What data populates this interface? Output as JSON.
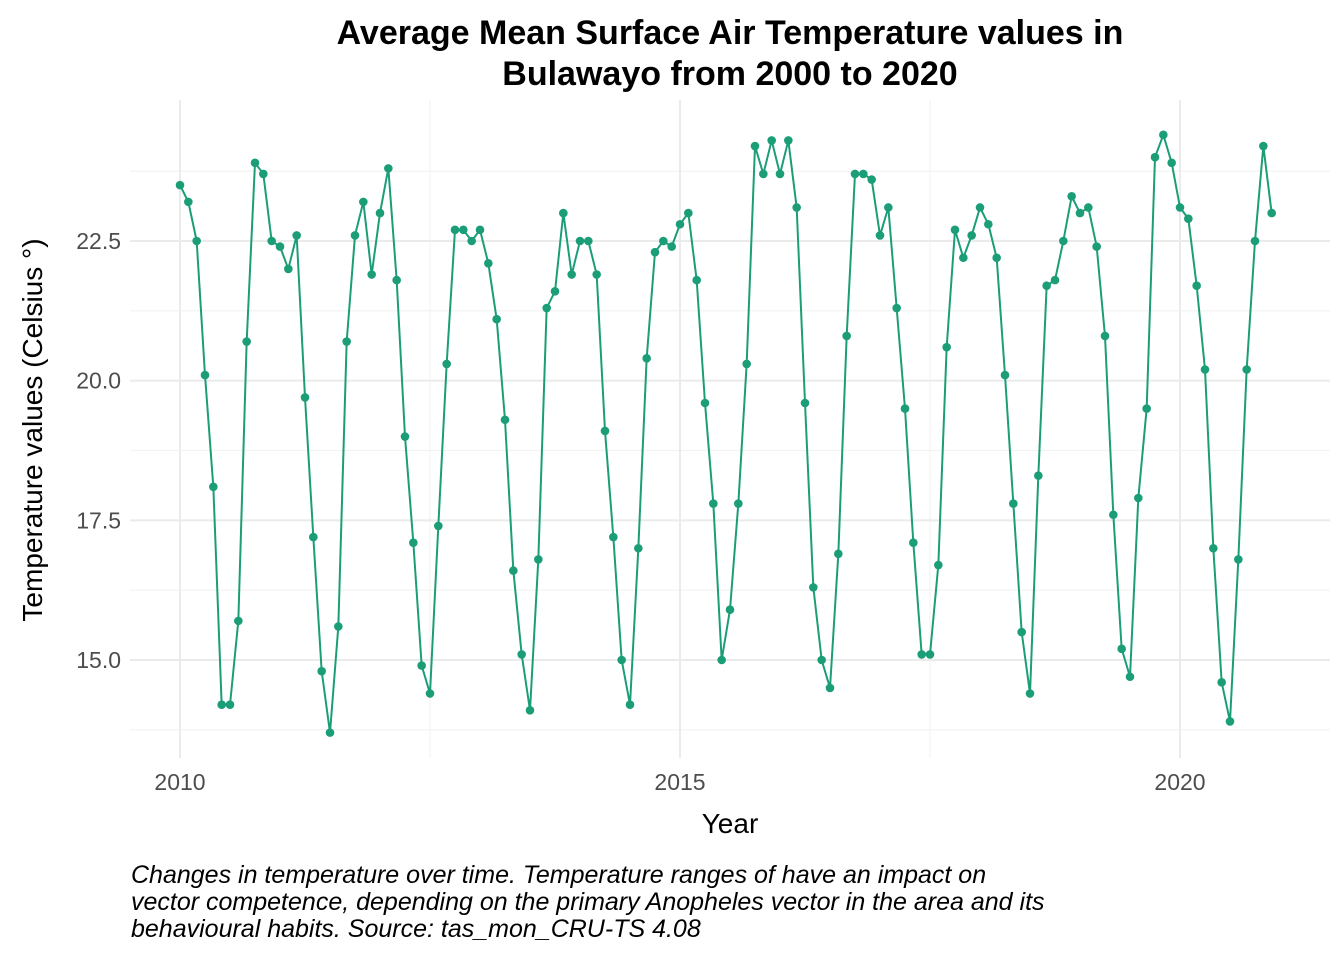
{
  "chart_data": {
    "type": "line",
    "title": [
      "Average Mean Surface Air Temperature values in",
      "Bulawayo from 2000 to 2020"
    ],
    "xlabel": "Year",
    "ylabel": "Temperature values (Celsius °)",
    "x_ticks": [
      "2010",
      "2015",
      "2020"
    ],
    "y_ticks": [
      "15.0",
      "17.5",
      "20.0",
      "22.5"
    ],
    "x_tick_values": [
      2010,
      2015,
      2020
    ],
    "y_tick_values": [
      15.0,
      17.5,
      20.0,
      22.5
    ],
    "xlim": [
      2009.5,
      2021.5
    ],
    "ylim": [
      13.5,
      24.9
    ],
    "grid": true,
    "legend": "none",
    "x_start": 2010.0,
    "x_step_months": 1,
    "series": [
      {
        "color": "#1b9e77",
        "values": [
          23.5,
          23.2,
          22.5,
          20.1,
          18.1,
          14.2,
          14.2,
          15.7,
          20.7,
          23.9,
          23.7,
          22.5,
          22.4,
          22.0,
          22.6,
          19.7,
          17.2,
          14.8,
          13.7,
          15.6,
          20.7,
          22.6,
          23.2,
          21.9,
          23.0,
          23.8,
          21.8,
          19.0,
          17.1,
          14.9,
          14.4,
          17.4,
          20.3,
          22.7,
          22.7,
          22.5,
          22.7,
          22.1,
          21.1,
          19.3,
          16.6,
          15.1,
          14.1,
          16.8,
          21.3,
          21.6,
          23.0,
          21.9,
          22.5,
          22.5,
          21.9,
          19.1,
          17.2,
          15.0,
          14.2,
          17.0,
          20.4,
          22.3,
          22.5,
          22.4,
          22.8,
          23.0,
          21.8,
          19.6,
          17.8,
          15.0,
          15.9,
          17.8,
          20.3,
          24.2,
          23.7,
          24.3,
          23.7,
          24.3,
          23.1,
          19.6,
          16.3,
          15.0,
          14.5,
          16.9,
          20.8,
          23.7,
          23.7,
          23.6,
          22.6,
          23.1,
          21.3,
          19.5,
          17.1,
          15.1,
          15.1,
          16.7,
          20.6,
          22.7,
          22.2,
          22.6,
          23.1,
          22.8,
          22.2,
          20.1,
          17.8,
          15.5,
          14.4,
          18.3,
          21.7,
          21.8,
          22.5,
          23.3,
          23.0,
          23.1,
          22.4,
          20.8,
          17.6,
          15.2,
          14.7,
          17.9,
          19.5,
          24.0,
          24.4,
          23.9,
          23.1,
          22.9,
          21.7,
          20.2,
          17.0,
          14.6,
          13.9,
          16.8,
          20.2,
          22.5,
          24.2,
          23.0
        ]
      }
    ]
  },
  "caption": [
    "Changes in temperature over time. Temperature ranges of have an impact on",
    "vector competence, depending on the primary Anopheles vector in the area and its",
    "behavioural habits. Source: tas_mon_CRU-TS 4.08"
  ]
}
